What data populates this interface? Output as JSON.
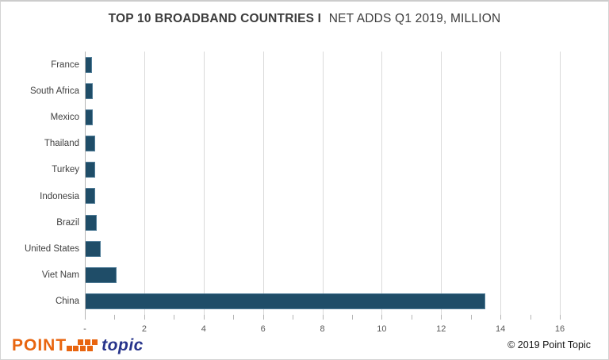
{
  "title": {
    "bold": "TOP 10 BROADBAND COUNTRIES I",
    "regular": "NET ADDS Q1 2019, MILLION"
  },
  "chart_data": {
    "type": "bar",
    "orientation": "horizontal",
    "title": "TOP 10 BROADBAND COUNTRIES I NET ADDS Q1 2019, MILLION",
    "categories": [
      "France",
      "South Africa",
      "Mexico",
      "Thailand",
      "Turkey",
      "Indonesia",
      "Brazil",
      "United States",
      "Viet Nam",
      "China"
    ],
    "values": [
      0.25,
      0.27,
      0.28,
      0.34,
      0.35,
      0.36,
      0.41,
      0.53,
      1.08,
      13.5
    ],
    "xlabel": "",
    "ylabel": "",
    "xlim": [
      0,
      16
    ],
    "x_ticks": [
      0,
      2,
      4,
      6,
      8,
      10,
      12,
      14,
      16
    ],
    "x_tick_labels": [
      "-",
      "2",
      "4",
      "6",
      "8",
      "10",
      "12",
      "14",
      "16"
    ],
    "minor_tick_step": 1,
    "grid": "vertical gridlines every 2 units",
    "legend": null,
    "bar_color": "#1F4D68",
    "gridline_color": "#dadada",
    "axis_color": "#b5b5b5"
  },
  "footer": {
    "logo_point": "POINT",
    "logo_topic": "topic",
    "logo_orange": "#E8650F",
    "logo_blue": "#27348B",
    "copyright": "© 2019 Point Topic"
  },
  "logo_dots": [
    [
      0,
      11
    ],
    [
      8,
      11
    ],
    [
      17,
      11
    ],
    [
      26,
      11
    ],
    [
      14,
      3
    ],
    [
      23,
      3
    ],
    [
      32,
      3
    ]
  ]
}
